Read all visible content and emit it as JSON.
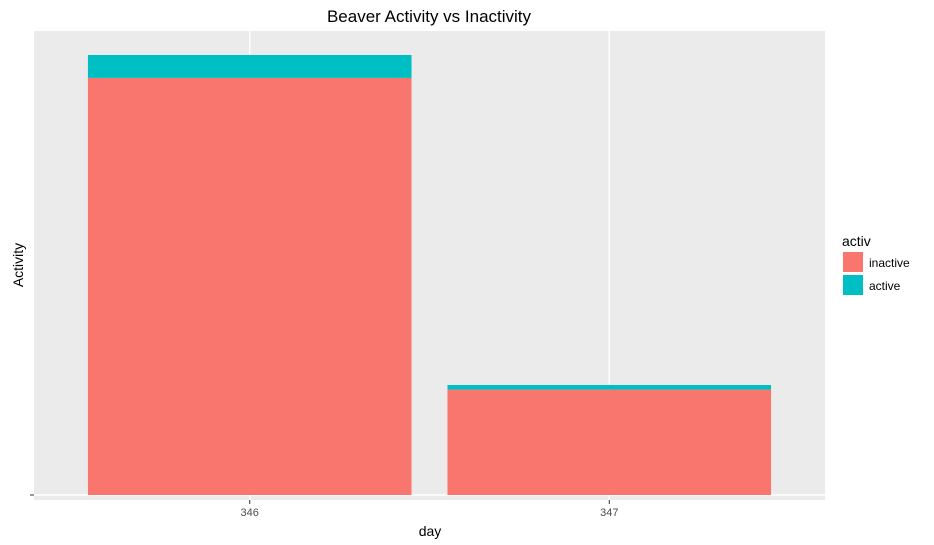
{
  "chart_data": {
    "type": "bar",
    "stacked": true,
    "title": "Beaver Activity vs Inactivity",
    "xlabel": "day",
    "ylabel": "Activity",
    "categories": [
      "346",
      "347"
    ],
    "series": [
      {
        "name": "inactive",
        "color": "#F8766D",
        "values": [
          91,
          23
        ]
      },
      {
        "name": "active",
        "color": "#00BFC4",
        "values": [
          5,
          1
        ]
      }
    ],
    "ylim": [
      0,
      96
    ],
    "y_tick_labels": [
      ""
    ],
    "legend": {
      "title": "activ",
      "position": "right",
      "entries": [
        "inactive",
        "active"
      ]
    },
    "grid": true,
    "panel_background": "#EBEBEB"
  }
}
